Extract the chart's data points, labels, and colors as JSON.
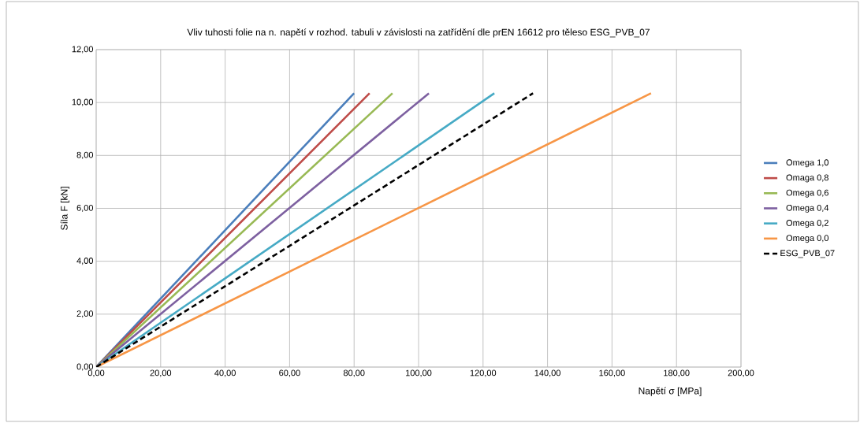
{
  "chart_data": {
    "type": "line",
    "title": "Vliv tuhosti folie na n. napětí v rozhod. tabuli v závislosti na zatřídění dle prEN 16612 pro těleso ESG_PVB_07",
    "xlabel": "Napětí σ [MPa]",
    "ylabel": "Síla F [kN]",
    "xlim": [
      0,
      200
    ],
    "ylim": [
      0,
      12
    ],
    "xticks": [
      {
        "value": 0,
        "label": "0,00"
      },
      {
        "value": 20,
        "label": "20,00"
      },
      {
        "value": 40,
        "label": "40,00"
      },
      {
        "value": 60,
        "label": "60,00"
      },
      {
        "value": 80,
        "label": "80,00"
      },
      {
        "value": 100,
        "label": "100,00"
      },
      {
        "value": 120,
        "label": "120,00"
      },
      {
        "value": 140,
        "label": "140,00"
      },
      {
        "value": 160,
        "label": "160,00"
      },
      {
        "value": 180,
        "label": "180,00"
      },
      {
        "value": 200,
        "label": "200,00"
      }
    ],
    "yticks": [
      {
        "value": 0,
        "label": "0,00"
      },
      {
        "value": 2,
        "label": "2,00"
      },
      {
        "value": 4,
        "label": "4,00"
      },
      {
        "value": 6,
        "label": "6,00"
      },
      {
        "value": 8,
        "label": "8,00"
      },
      {
        "value": 10,
        "label": "10,00"
      },
      {
        "value": 12,
        "label": "12,00"
      }
    ],
    "grid": true,
    "legend": "right",
    "series": [
      {
        "name": "Omega 1,0",
        "color": "#4a7ebb",
        "x": [
          0,
          80.0
        ],
        "values": [
          0,
          10.35
        ]
      },
      {
        "name": "Omaga 0,8",
        "color": "#be4b48",
        "x": [
          0,
          84.8
        ],
        "values": [
          0,
          10.35
        ]
      },
      {
        "name": "Omega 0,6",
        "color": "#98b954",
        "x": [
          0,
          91.9
        ],
        "values": [
          0,
          10.35
        ]
      },
      {
        "name": "Omega 0,4",
        "color": "#7d60a0",
        "x": [
          0,
          103.2
        ],
        "values": [
          0,
          10.35
        ]
      },
      {
        "name": "Omega 0,2",
        "color": "#46aac5",
        "x": [
          0,
          123.5
        ],
        "values": [
          0,
          10.35
        ]
      },
      {
        "name": "Omega 0,0",
        "color": "#f79646",
        "x": [
          0,
          172.1
        ],
        "values": [
          0,
          10.35
        ]
      },
      {
        "name": "ESG_PVB_07",
        "color": "#000000",
        "line_style": "dashed",
        "x": [
          0,
          135.5
        ],
        "values": [
          0,
          10.35
        ]
      }
    ]
  }
}
